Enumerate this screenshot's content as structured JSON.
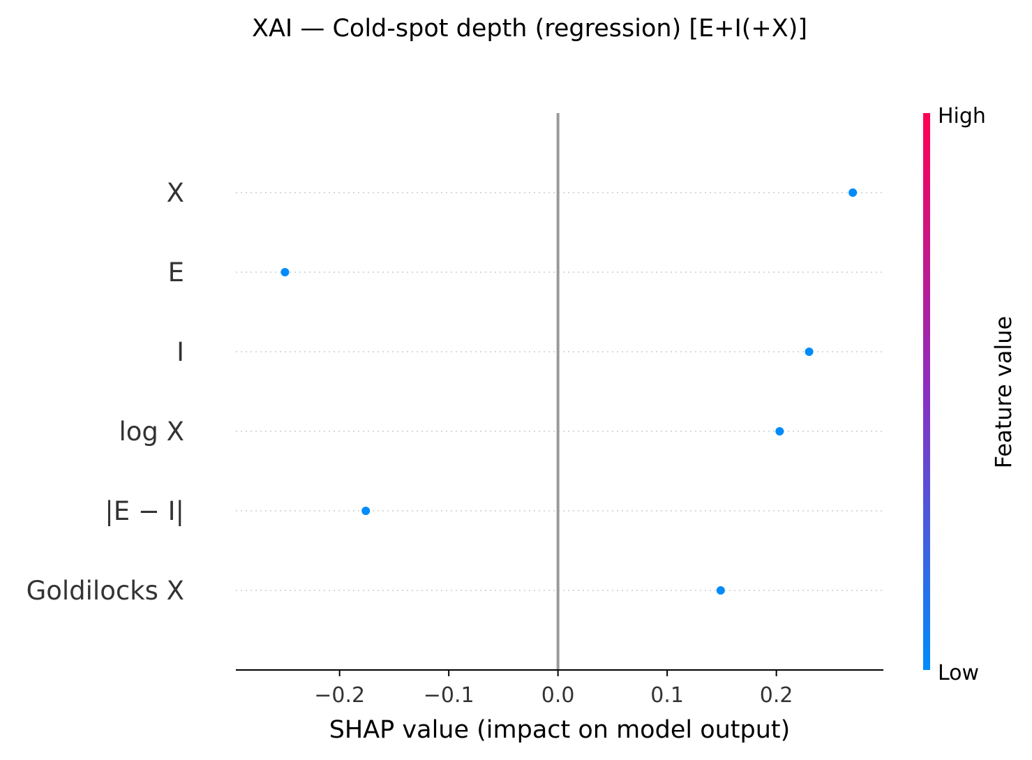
{
  "chart_data": {
    "type": "scatter",
    "title": "XAI — Cold-spot depth (regression) [E+I(+X)]",
    "xlabel": "SHAP value (impact on model output)",
    "xlim": [
      -0.295,
      0.298
    ],
    "xticks": [
      {
        "value": -0.2,
        "label": "−0.2"
      },
      {
        "value": -0.1,
        "label": "−0.1"
      },
      {
        "value": 0.0,
        "label": "0.0"
      },
      {
        "value": 0.1,
        "label": "0.1"
      },
      {
        "value": 0.2,
        "label": "0.2"
      }
    ],
    "features": [
      "X",
      "E",
      "I",
      "log X",
      "|E − I|",
      "Goldilocks X"
    ],
    "points": [
      {
        "feature": "X",
        "shap": 0.27,
        "feature_value": "low"
      },
      {
        "feature": "E",
        "shap": -0.25,
        "feature_value": "low"
      },
      {
        "feature": "I",
        "shap": 0.23,
        "feature_value": "low"
      },
      {
        "feature": "log X",
        "shap": 0.203,
        "feature_value": "low"
      },
      {
        "feature": "|E − I|",
        "shap": -0.176,
        "feature_value": "low"
      },
      {
        "feature": "Goldilocks X",
        "shap": 0.149,
        "feature_value": "low"
      }
    ],
    "grid": "dotted horizontal per feature",
    "colorbar": {
      "label": "Feature value",
      "high_label": "High",
      "low_label": "Low",
      "high_color": "#ff0052",
      "mid_color": "#8b2fc0",
      "low_color": "#008bfb"
    },
    "colors": {
      "point": "#008bfb",
      "zero_line": "#999999",
      "grid": "#cccccc",
      "axis": "#000000",
      "label_text": "#333333"
    }
  }
}
